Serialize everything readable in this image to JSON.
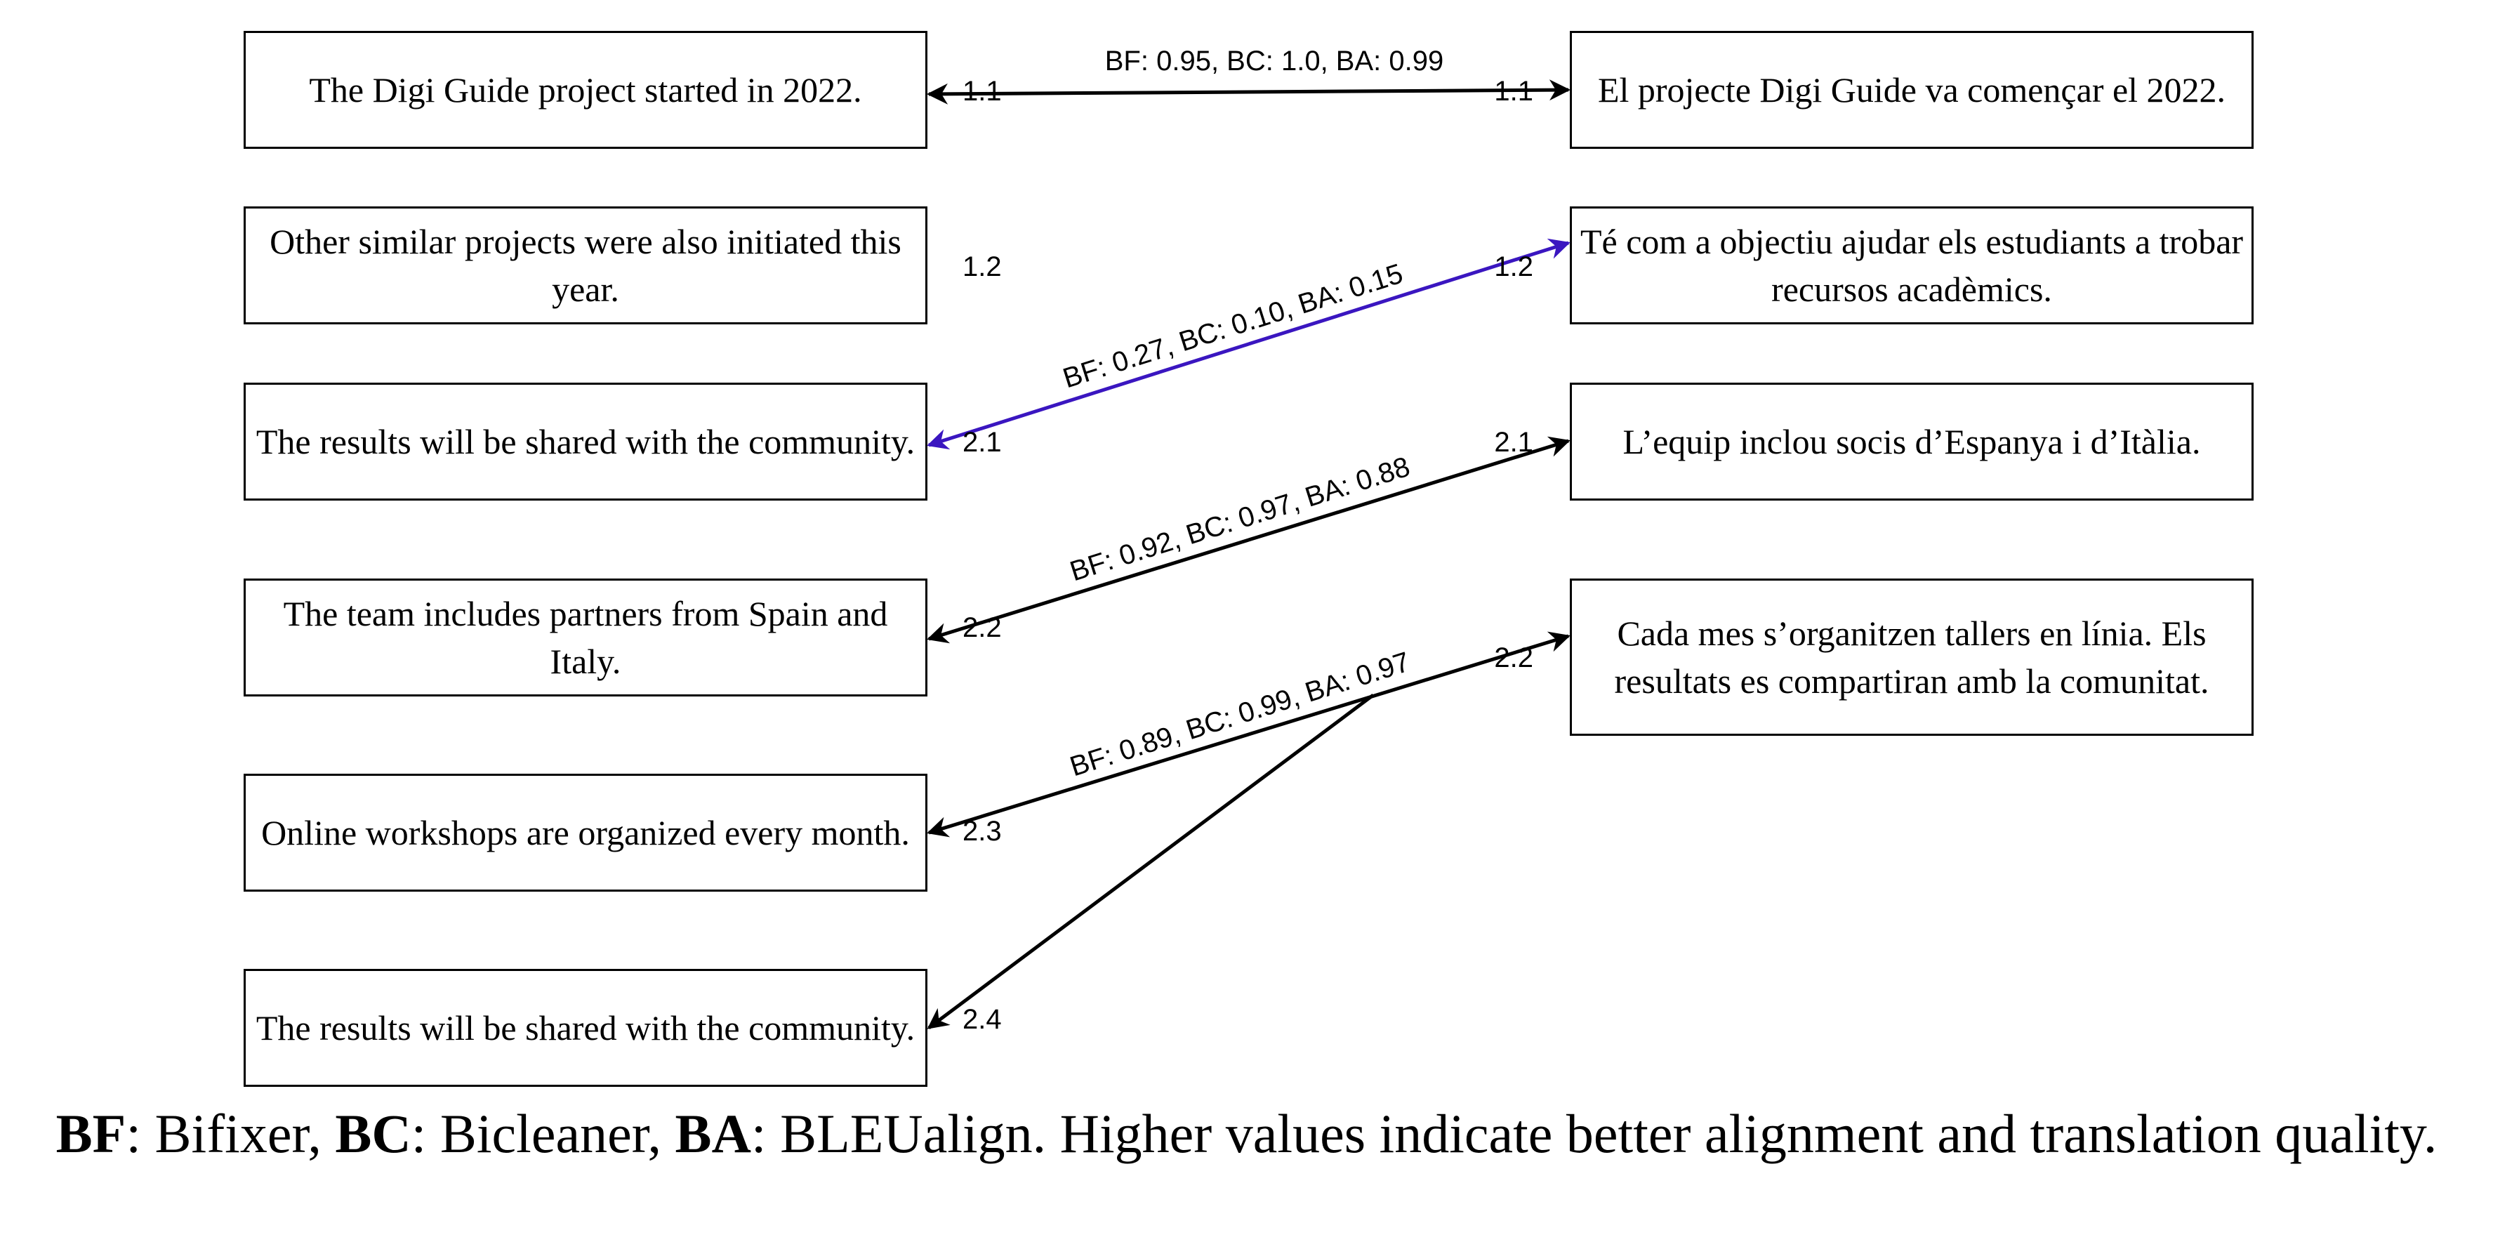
{
  "source_sentences": [
    {
      "id": "src-1",
      "text": "The Digi Guide project started in 2022."
    },
    {
      "id": "src-2",
      "text": "Other similar projects were also initiated this year."
    },
    {
      "id": "src-3",
      "text": "The results will be shared with the community."
    },
    {
      "id": "src-4",
      "text": "The team includes partners from Spain and Italy."
    },
    {
      "id": "src-5",
      "text": "Online workshops are organized every month."
    },
    {
      "id": "src-6",
      "text": "The results will be shared with the community."
    }
  ],
  "target_sentences": [
    {
      "id": "tgt-1",
      "text": "El projecte Digi Guide va començar el 2022."
    },
    {
      "id": "tgt-2",
      "text": "Té com a objectiu ajudar els estudiants a trobar recursos acadèmics."
    },
    {
      "id": "tgt-3",
      "text": "L’equip inclou socis d’Espanya i d’Itàlia."
    },
    {
      "id": "tgt-4",
      "text": "Cada mes s’organitzen tallers en línia. Els resultats es compartiran amb la comunitat."
    }
  ],
  "source_numbers": [
    "1.1",
    "1.2",
    "2.1",
    "2.2",
    "2.3",
    "2.4"
  ],
  "target_numbers": [
    "1.1",
    "1.2",
    "2.1",
    "2.2"
  ],
  "alignments": [
    {
      "src": 1,
      "tgt": 1,
      "label": "BF: 0.95, BC: 1.0, BA: 0.99",
      "color": "#000000"
    },
    {
      "src": 3,
      "tgt": 2,
      "label": "BF: 0.27, BC: 0.10, BA: 0.15",
      "color": "#3a16c0"
    },
    {
      "src": 4,
      "tgt": 3,
      "label": "BF: 0.92, BC: 0.97, BA: 0.88",
      "color": "#000000"
    },
    {
      "src": 5,
      "tgt": 4,
      "label": "BF: 0.89, BC: 0.99, BA: 0.97",
      "color": "#000000"
    },
    {
      "src": 6,
      "tgt": 4,
      "label": "",
      "color": "#000000"
    }
  ],
  "caption": {
    "bf_abbr": "BF",
    "bf_text": ": Bifixer, ",
    "bc_abbr": "BC",
    "bc_text": ": Bicleaner, ",
    "ba_abbr": "BA",
    "ba_text": ": BLEUalign. Higher values indicate better alignment and translation quality."
  }
}
